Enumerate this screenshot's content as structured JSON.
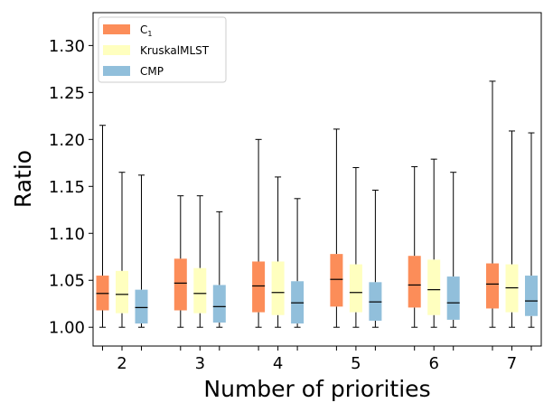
{
  "chart_data": {
    "type": "boxplot",
    "title": "",
    "xlabel": "Number of priorities",
    "ylabel": "Ratio",
    "categories": [
      "2",
      "3",
      "4",
      "5",
      "6",
      "7"
    ],
    "ylim": [
      0.98,
      1.335
    ],
    "yticks": [
      "1.00",
      "1.05",
      "1.10",
      "1.15",
      "1.20",
      "1.25",
      "1.30"
    ],
    "grid": false,
    "legend_position": "top-left",
    "series": [
      {
        "name": "C",
        "name_subscript": "1",
        "color": "#fc8d59",
        "boxes": [
          {
            "whislo": 1.0,
            "q1": 1.018,
            "med": 1.036,
            "q3": 1.055,
            "whishi": 1.215
          },
          {
            "whislo": 1.0,
            "q1": 1.018,
            "med": 1.047,
            "q3": 1.073,
            "whishi": 1.14
          },
          {
            "whislo": 1.0,
            "q1": 1.016,
            "med": 1.044,
            "q3": 1.07,
            "whishi": 1.2
          },
          {
            "whislo": 1.0,
            "q1": 1.022,
            "med": 1.051,
            "q3": 1.078,
            "whishi": 1.211
          },
          {
            "whislo": 1.0,
            "q1": 1.021,
            "med": 1.045,
            "q3": 1.076,
            "whishi": 1.171
          },
          {
            "whislo": 1.0,
            "q1": 1.02,
            "med": 1.046,
            "q3": 1.068,
            "whishi": 1.262
          }
        ]
      },
      {
        "name": "KruskalMLST",
        "color": "#ffffbf",
        "boxes": [
          {
            "whislo": 1.0,
            "q1": 1.015,
            "med": 1.035,
            "q3": 1.06,
            "whishi": 1.165
          },
          {
            "whislo": 1.0,
            "q1": 1.015,
            "med": 1.036,
            "q3": 1.063,
            "whishi": 1.14
          },
          {
            "whislo": 1.0,
            "q1": 1.013,
            "med": 1.037,
            "q3": 1.07,
            "whishi": 1.16
          },
          {
            "whislo": 1.0,
            "q1": 1.016,
            "med": 1.037,
            "q3": 1.067,
            "whishi": 1.17
          },
          {
            "whislo": 1.0,
            "q1": 1.013,
            "med": 1.04,
            "q3": 1.072,
            "whishi": 1.179
          },
          {
            "whislo": 1.0,
            "q1": 1.016,
            "med": 1.042,
            "q3": 1.067,
            "whishi": 1.209
          }
        ]
      },
      {
        "name": "CMP",
        "color": "#91bfdb",
        "boxes": [
          {
            "whislo": 1.0,
            "q1": 1.004,
            "med": 1.021,
            "q3": 1.04,
            "whishi": 1.162
          },
          {
            "whislo": 1.0,
            "q1": 1.005,
            "med": 1.022,
            "q3": 1.045,
            "whishi": 1.123
          },
          {
            "whislo": 1.0,
            "q1": 1.004,
            "med": 1.026,
            "q3": 1.049,
            "whishi": 1.137
          },
          {
            "whislo": 1.0,
            "q1": 1.007,
            "med": 1.027,
            "q3": 1.048,
            "whishi": 1.146
          },
          {
            "whislo": 1.0,
            "q1": 1.008,
            "med": 1.026,
            "q3": 1.054,
            "whishi": 1.165
          },
          {
            "whislo": 1.0,
            "q1": 1.012,
            "med": 1.028,
            "q3": 1.055,
            "whishi": 1.207
          }
        ]
      }
    ]
  }
}
